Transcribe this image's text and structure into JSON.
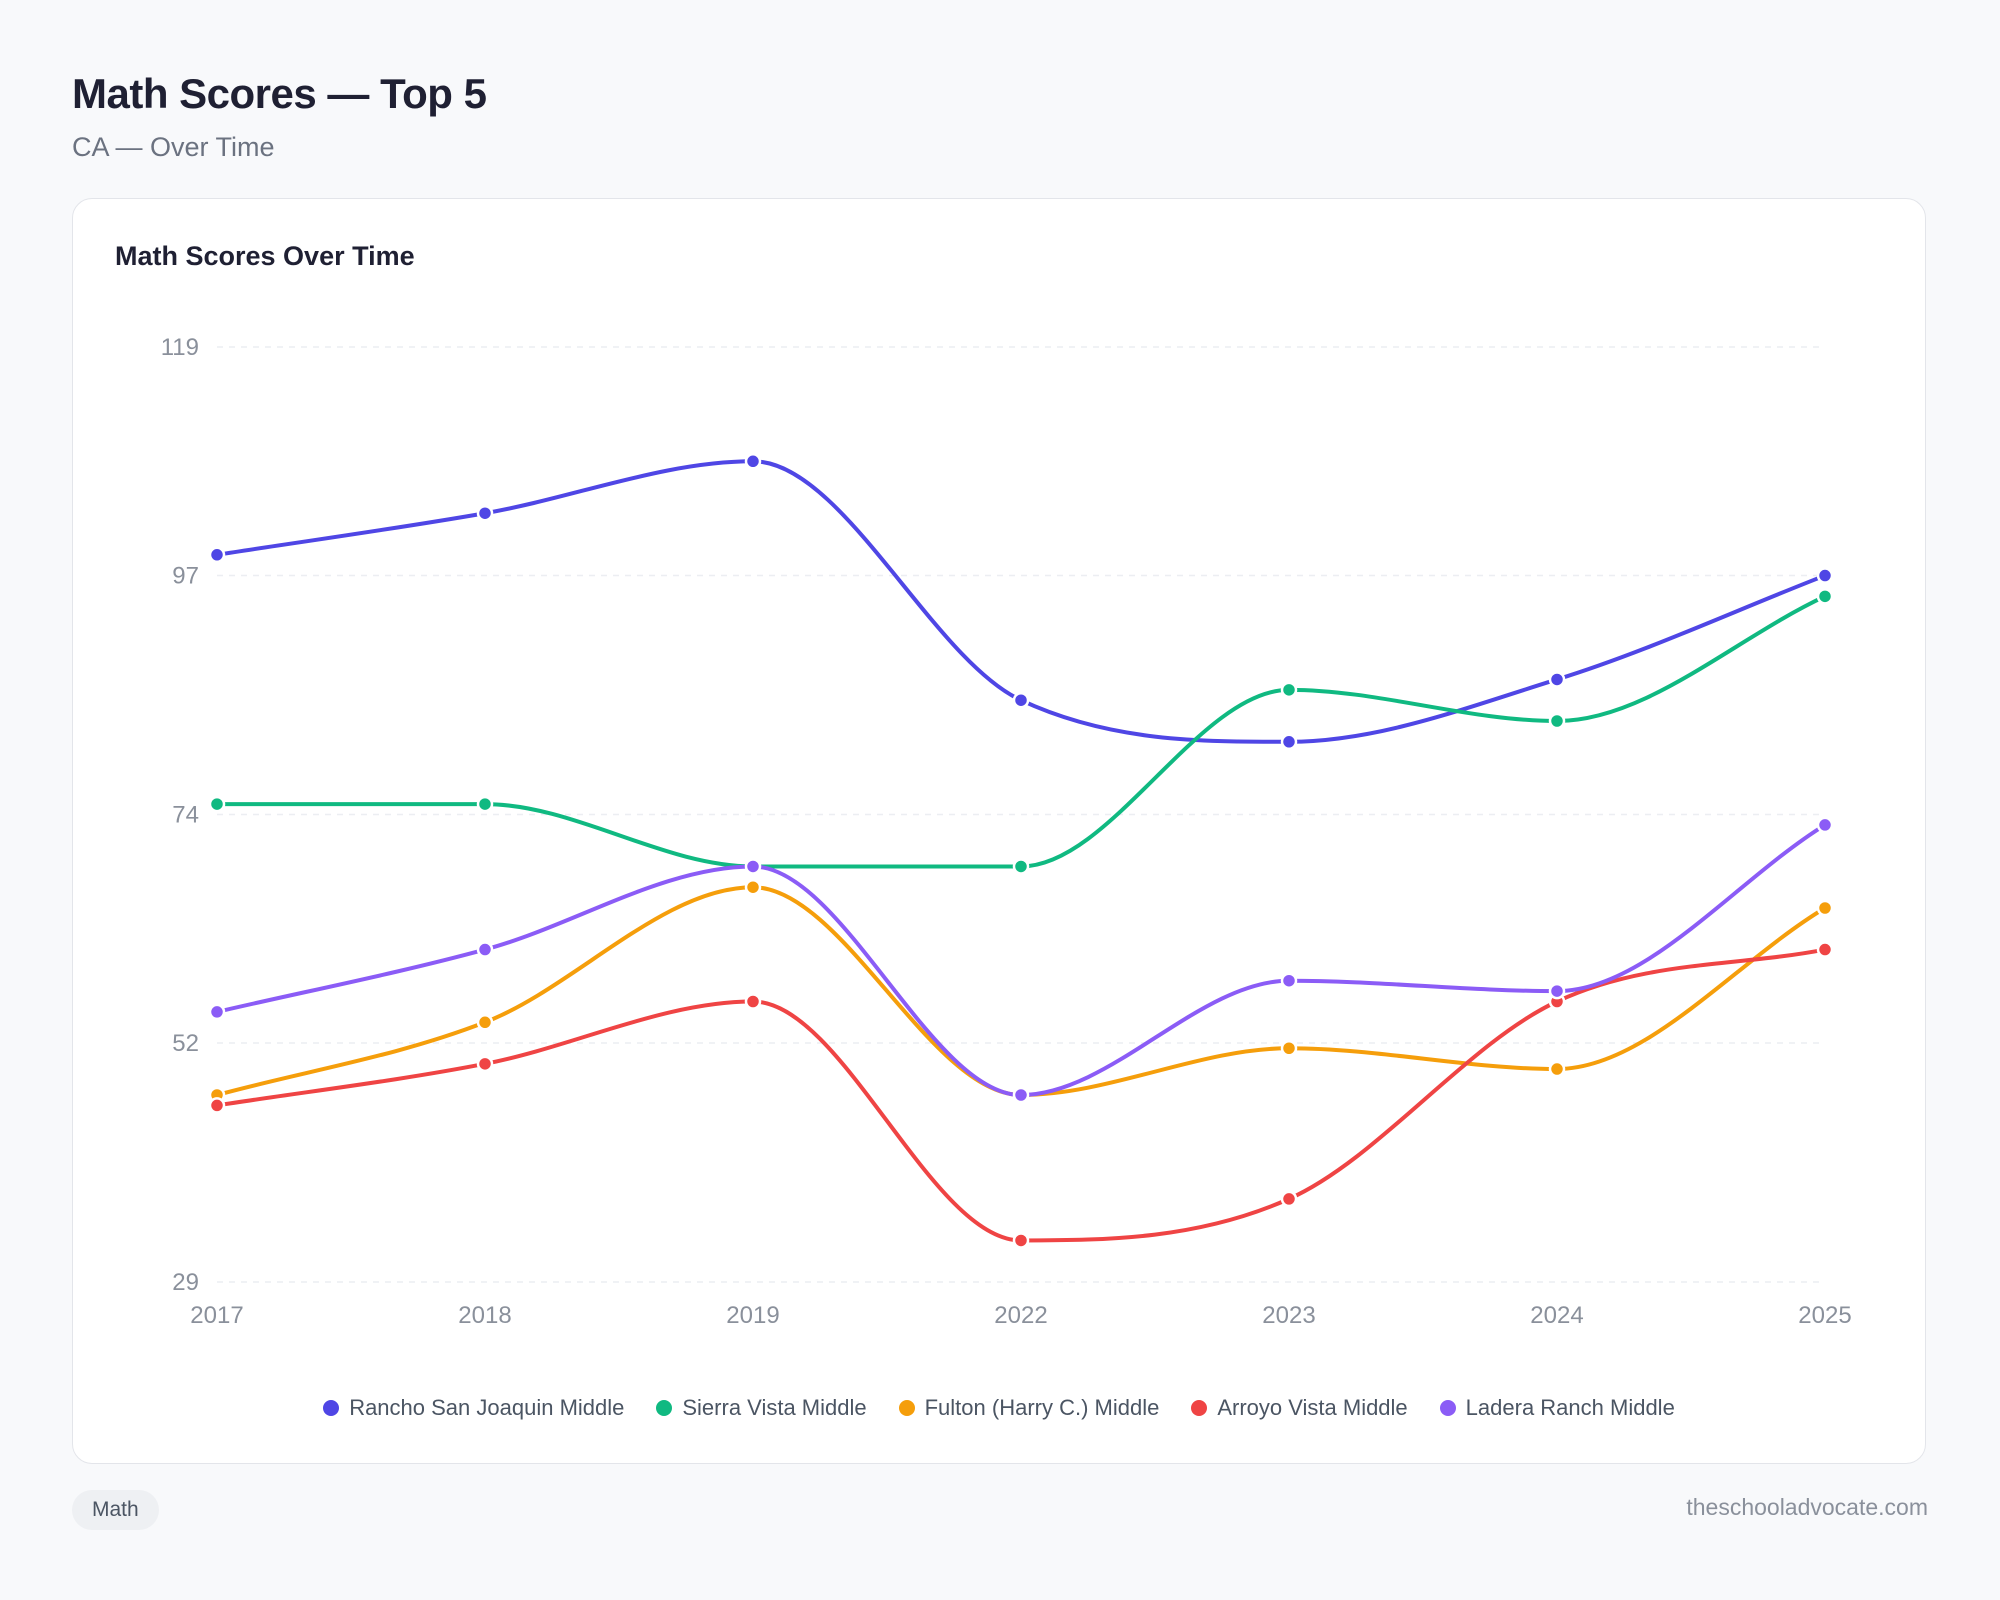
{
  "header": {
    "title": "Math Scores — Top 5",
    "subtitle": "CA — Over Time"
  },
  "card": {
    "title": "Math Scores Over Time"
  },
  "footer": {
    "tag": "Math",
    "site": "theschooladvocate.com"
  },
  "chart_data": {
    "type": "line",
    "title": "Math Scores Over Time",
    "xlabel": "",
    "ylabel": "",
    "x": [
      "2017",
      "2018",
      "2019",
      "2022",
      "2023",
      "2024",
      "2025"
    ],
    "ylim": [
      29,
      119
    ],
    "yticks": [
      119,
      97,
      74,
      52,
      29
    ],
    "grid": true,
    "legend": "bottom",
    "series": [
      {
        "name": "Rancho San Joaquin Middle",
        "color": "#4f46e5",
        "values": [
          99,
          103,
          108,
          85,
          81,
          87,
          97
        ]
      },
      {
        "name": "Sierra Vista Middle",
        "color": "#10b981",
        "values": [
          75,
          75,
          69,
          69,
          86,
          83,
          95
        ]
      },
      {
        "name": "Fulton (Harry C.) Middle",
        "color": "#f59e0b",
        "values": [
          47,
          54,
          67,
          47,
          51.5,
          49.5,
          65
        ]
      },
      {
        "name": "Arroyo Vista Middle",
        "color": "#ef4444",
        "values": [
          46,
          50,
          56,
          33,
          37,
          56,
          61
        ]
      },
      {
        "name": "Ladera Ranch Middle",
        "color": "#8b5cf6",
        "values": [
          55,
          61,
          69,
          47,
          58,
          57,
          73
        ]
      }
    ]
  }
}
